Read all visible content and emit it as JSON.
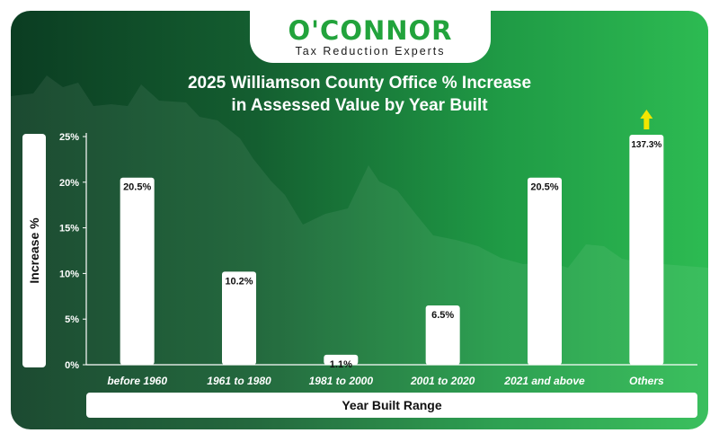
{
  "brand": {
    "name": "O'CONNOR",
    "tagline": "Tax Reduction Experts"
  },
  "chart_data": {
    "type": "bar",
    "title_line1": "2025 Williamson County Office % Increase",
    "title_line2": "in Assessed Value by Year Built",
    "xlabel": "Year Built Range",
    "ylabel": "Increase %",
    "categories": [
      "before 1960",
      "1961 to 1980",
      "1981 to 2000",
      "2001 to 2020",
      "2021 and above",
      "Others"
    ],
    "values": [
      20.5,
      10.2,
      1.1,
      6.5,
      20.5,
      137.3
    ],
    "value_labels": [
      "20.5%",
      "10.2%",
      "1.1%",
      "6.5%",
      "20.5%",
      "137.3%"
    ],
    "ylim": [
      0,
      25
    ],
    "yticks": [
      "0%",
      "5%",
      "10%",
      "15%",
      "20%",
      "25%"
    ],
    "ytick_values": [
      0,
      5,
      10,
      15,
      20,
      25
    ],
    "overflow_indicator": "arrow-up",
    "grid": false,
    "legend": "none",
    "colors": {
      "bar": "#ffffff",
      "arrow": "#f2e600",
      "background_dark": "#0b3d22",
      "background_light": "#2dbb52",
      "brand_green": "#22a33c"
    }
  }
}
